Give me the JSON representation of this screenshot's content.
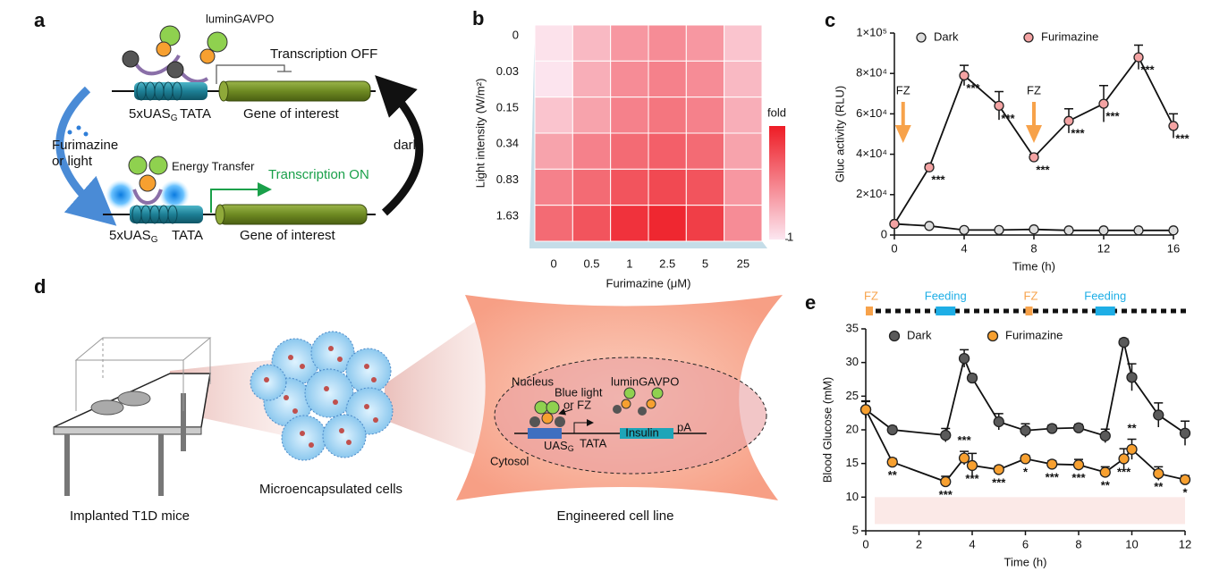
{
  "panel_labels": [
    "a",
    "b",
    "c",
    "d",
    "e"
  ],
  "diagram_a": {
    "protein": "luminGAVPO",
    "off_label": "Transcription OFF",
    "promoter": {
      "text": "5xUAS",
      "sub": "G"
    },
    "tata": "TATA",
    "gene": "Gene of interest",
    "stimulus_1": "Furimazine",
    "stimulus_2": "or light",
    "reverse": "dark",
    "energy": "Energy Transfer",
    "on_label": "Transcription ON"
  },
  "diagram_d": {
    "mice": "Implanted T1D mice",
    "cells": "Microencapsulated cells",
    "cell_line": "Engineered cell line",
    "nucleus": "Nucleus",
    "stim_1": "Blue light",
    "stim_2": "or FZ",
    "protein": "luminGAVPO",
    "promoter": {
      "text": "UAS",
      "sub": "G"
    },
    "tata": "TATA",
    "gene": "Insulin",
    "pa": "pA",
    "cytosol": "Cytosol"
  },
  "chart_data": [
    {
      "type": "heatmap",
      "x": [
        "0",
        "0.5",
        "1",
        "2.5",
        "5",
        "25"
      ],
      "y": [
        "0",
        "0.03",
        "0.15",
        "0.34",
        "0.83",
        "1.63"
      ],
      "values": [
        [
          1.2,
          3,
          4.5,
          5,
          4.5,
          2.5
        ],
        [
          1.1,
          3.5,
          5,
          5.5,
          5,
          3
        ],
        [
          2.5,
          4,
          5.5,
          6,
          5.5,
          3.5
        ],
        [
          4,
          5.5,
          6.5,
          7,
          6.5,
          4
        ],
        [
          5.5,
          6.5,
          7.5,
          8,
          7.5,
          4.5
        ],
        [
          6.5,
          7.5,
          9,
          9.5,
          8.5,
          5
        ]
      ],
      "x_label": "Furimazine (μM)",
      "y_label": "Light intensity (W/m²)",
      "colorbar_label": "fold",
      "clim": [
        1,
        10
      ],
      "cticks": [
        1
      ],
      "colors": [
        "#fce6f0",
        "#ee1c25"
      ]
    },
    {
      "type": "line",
      "x_label": "Time (h)",
      "y_label": "Gluc activity (RLU)",
      "xlim": [
        0,
        16
      ],
      "xticks": [
        0,
        4,
        8,
        12,
        16
      ],
      "ylim": [
        0,
        100000
      ],
      "yticks": [
        0,
        {
          "value": 20000,
          "label": "2×10⁴"
        },
        {
          "value": 40000,
          "label": "4×10⁴"
        },
        {
          "value": 60000,
          "label": "6×10⁴"
        },
        {
          "value": 80000,
          "label": "8×10⁴"
        },
        {
          "value": 100000,
          "label": "1×10⁵"
        }
      ],
      "x": [
        0,
        2,
        4,
        6,
        8,
        10,
        12,
        14,
        16
      ],
      "series": [
        {
          "name": "Dark",
          "color": "#dddddd",
          "values": [
            5500,
            4500,
            2500,
            2500,
            2800,
            2300,
            2300,
            2300,
            2300
          ],
          "errors": [
            500,
            400,
            300,
            300,
            300,
            300,
            300,
            300,
            300
          ]
        },
        {
          "name": "Furimazine",
          "color": "#f4a3a3",
          "values": [
            5500,
            33500,
            79000,
            64000,
            38500,
            56500,
            65000,
            88000,
            54000
          ],
          "errors": [
            500,
            1500,
            5000,
            7000,
            1500,
            6000,
            9000,
            6000,
            6000
          ],
          "significance": [
            null,
            "***",
            "***",
            "***",
            "***",
            "***",
            "***",
            "***",
            "***"
          ]
        }
      ],
      "annotations": [
        {
          "text": "FZ",
          "x": 0.5
        },
        {
          "text": "FZ",
          "x": 8
        }
      ],
      "annotation_color": "#f7a24a"
    },
    {
      "type": "line",
      "x_label": "Time (h)",
      "y_label": "Blood Glucose (mM)",
      "xlim": [
        0,
        12
      ],
      "xticks": [
        0,
        2,
        4,
        6,
        8,
        10,
        12
      ],
      "ylim": [
        5,
        35
      ],
      "yticks": [
        5,
        10,
        15,
        20,
        25,
        30,
        35
      ],
      "x": [
        0,
        1,
        3,
        3.7,
        4,
        5,
        6,
        7,
        8,
        9,
        9.7,
        10,
        11,
        12
      ],
      "series": [
        {
          "name": "Dark",
          "color": "#5a5a5a",
          "values": [
            23,
            20,
            19.2,
            30.6,
            27.7,
            21.2,
            19.9,
            20.2,
            20.3,
            19.1,
            33,
            27.8,
            22.2,
            19.5
          ],
          "errors": [
            1.2,
            0.5,
            1,
            1.3,
            0.5,
            1.2,
            1,
            0.5,
            0.5,
            1,
            0.5,
            2,
            1.8,
            1.8
          ]
        },
        {
          "name": "Furimazine",
          "color": "#f7a030",
          "values": [
            23,
            15.2,
            12.3,
            15.8,
            14.7,
            14.1,
            15.7,
            14.9,
            14.8,
            13.7,
            15.7,
            17.1,
            13.5,
            12.6
          ],
          "errors": [
            1.3,
            0.5,
            0.8,
            1,
            1.8,
            0.5,
            0.5,
            0.5,
            0.8,
            0.8,
            1.5,
            1.5,
            1,
            0.6
          ],
          "significance": [
            null,
            "**",
            "***",
            "***",
            "***",
            "***",
            "*",
            "***",
            "***",
            "**",
            "***",
            "**",
            "**",
            "*"
          ]
        }
      ],
      "shaded_band": [
        6,
        10
      ],
      "band_color": "#fbe9e7",
      "timeline": [
        {
          "label": "FZ",
          "x": 0,
          "color": "#f7a24a"
        },
        {
          "label": "Feeding",
          "x": 3,
          "color": "#1eaee6"
        },
        {
          "label": "FZ",
          "x": 6,
          "color": "#f7a24a"
        },
        {
          "label": "Feeding",
          "x": 9,
          "color": "#1eaee6"
        }
      ]
    }
  ]
}
